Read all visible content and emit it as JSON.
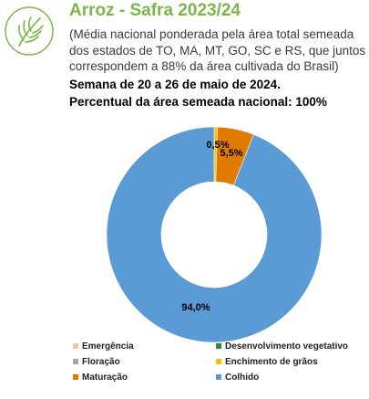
{
  "header": {
    "title": "Arroz - Safra 2023/24",
    "subtitle": "(Média nacional ponderada pela área total semeada dos estados de TO, MA, MT, GO, SC e RS, que juntos correspondem a 88% da área cultivada do Brasil)",
    "week": "Semana de 20 a 26 de maio de 2024.",
    "national_share": "Percentual da área semeada nacional: 100%"
  },
  "logo": {
    "icon": "rice-plant-icon",
    "color": "#7ab648"
  },
  "chart_data": {
    "type": "pie",
    "donut": true,
    "title": "",
    "categories": [
      "Emergência",
      "Desenvolvimento vegetativo",
      "Floração",
      "Enchimento de grãos",
      "Maturação",
      "Colhido"
    ],
    "values": [
      0,
      0,
      0,
      0.5,
      5.5,
      94.0
    ],
    "data_labels": [
      "",
      "",
      "",
      "0,5%",
      "5,5%",
      "94,0%"
    ],
    "colors": [
      "#f4c7a1",
      "#2e8b2e",
      "#a6a6a6",
      "#ffc000",
      "#e07b00",
      "#5b9bd5"
    ],
    "legend_position": "bottom"
  }
}
